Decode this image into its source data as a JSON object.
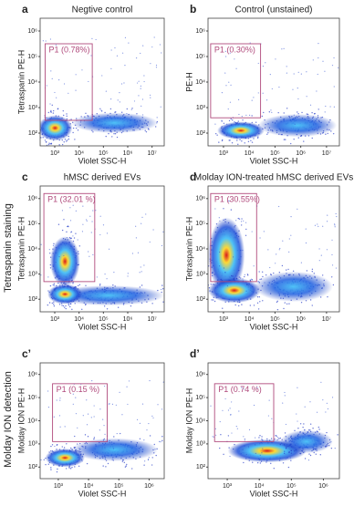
{
  "row_labels": [
    "Tetraspanin staining",
    "Molday ION detection"
  ],
  "panels": [
    {
      "label": "a",
      "title": "Negtive control",
      "y_label": "Tetraspanin PE-H",
      "x_label": "Violet SSC-H",
      "gate": "P1 (0.78%)",
      "y_ticks": [
        "10²",
        "10³",
        "10⁴",
        "10⁵",
        "10⁶"
      ],
      "x_ticks": [
        "10³",
        "10⁴",
        "10⁵",
        "10⁶",
        "10⁷"
      ]
    },
    {
      "label": "b",
      "title": "Control (unstained)",
      "y_label": "PE-H",
      "x_label": "Violet SSC-H",
      "gate": "P1 (0.30%)",
      "y_ticks": [
        "10²",
        "10³",
        "10⁴",
        "10⁵",
        "10⁶"
      ],
      "x_ticks": [
        "10³",
        "10⁴",
        "10⁵",
        "10⁶",
        "10⁷"
      ]
    },
    {
      "label": "c",
      "title": "hMSC derived EVs",
      "y_label": "Tetraspanin PE-H",
      "x_label": "Violet SSC-H",
      "gate": "P1 (32.01 %)",
      "y_ticks": [
        "10²",
        "10³",
        "10⁴",
        "10⁵",
        "10⁶"
      ],
      "x_ticks": [
        "10³",
        "10⁴",
        "10⁵",
        "10⁶",
        "10⁷"
      ]
    },
    {
      "label": "d",
      "title": "Molday ION-treated hMSC derived EVs",
      "y_label": "Tetraspanin PE-H",
      "x_label": "Violet SSC-H",
      "gate": "P1 (30.55%)",
      "y_ticks": [
        "10²",
        "10³",
        "10⁴",
        "10⁵",
        "10⁶"
      ],
      "x_ticks": [
        "10³",
        "10⁴",
        "10⁵",
        "10⁶",
        "10⁷"
      ]
    },
    {
      "label": "c’",
      "title": "",
      "y_label": "Molday ION PE-H",
      "x_label": "Violet SSC-H",
      "gate": "P1 (0.15 %)",
      "y_ticks": [
        "10²",
        "10³",
        "10⁴",
        "10⁵",
        "10⁶"
      ],
      "x_ticks": [
        "10³",
        "10⁴",
        "10⁵",
        "10⁶"
      ]
    },
    {
      "label": "d’",
      "title": "",
      "y_label": "Molday ION PE-H",
      "x_label": "Violet SSC-H",
      "gate": "P1 (0.74 %)",
      "y_ticks": [
        "10²",
        "10³",
        "10⁴",
        "10⁵",
        "10⁶"
      ],
      "x_ticks": [
        "10³",
        "10⁴",
        "10⁵",
        "10⁶"
      ]
    }
  ]
}
